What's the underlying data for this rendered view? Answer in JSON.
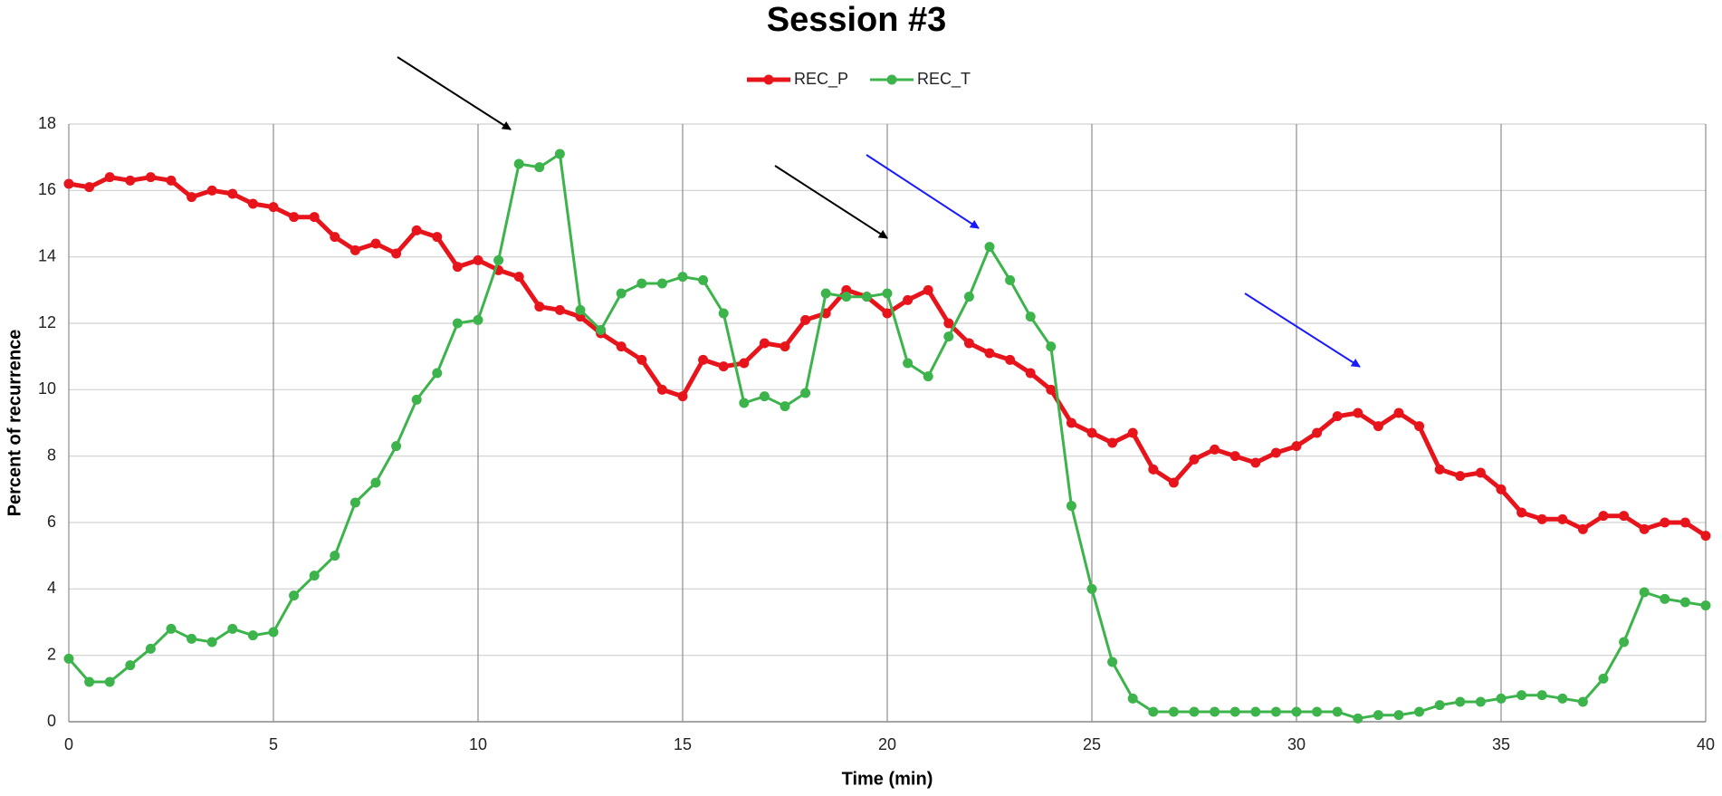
{
  "chart_data": {
    "type": "line",
    "title": "Session #3",
    "xlabel": "Time (min)",
    "ylabel": "Percent of recurrence",
    "x": [
      0,
      0.5,
      1,
      1.5,
      2,
      2.5,
      3,
      3.5,
      4,
      4.5,
      5,
      5.5,
      6,
      6.5,
      7,
      7.5,
      8,
      8.5,
      9,
      9.5,
      10,
      10.5,
      11,
      11.5,
      12,
      12.5,
      13,
      13.5,
      14,
      14.5,
      15,
      15.5,
      16,
      16.5,
      17,
      17.5,
      18,
      18.5,
      19,
      19.5,
      20,
      20.5,
      21,
      21.5,
      22,
      22.5,
      23,
      23.5,
      24,
      24.5,
      25,
      25.5,
      26,
      26.5,
      27,
      27.5,
      28,
      28.5,
      29,
      29.5,
      30,
      30.5,
      31,
      31.5,
      32,
      32.5,
      33,
      33.5,
      34,
      34.5,
      35,
      35.5,
      36,
      36.5,
      37,
      37.5,
      38,
      38.5,
      39,
      39.5,
      40
    ],
    "series": [
      {
        "name": "REC_P",
        "color": "#e8141c",
        "values": [
          16.2,
          16.1,
          16.4,
          16.3,
          16.4,
          16.3,
          15.8,
          16.0,
          15.9,
          15.6,
          15.5,
          15.2,
          15.2,
          14.6,
          14.2,
          14.4,
          14.1,
          14.8,
          14.6,
          13.7,
          13.9,
          13.6,
          13.4,
          12.5,
          12.4,
          12.2,
          11.7,
          11.3,
          10.9,
          10.0,
          9.8,
          10.9,
          10.7,
          10.8,
          11.4,
          11.3,
          12.1,
          12.3,
          13.0,
          12.8,
          12.3,
          12.7,
          13.0,
          12.0,
          11.4,
          11.1,
          10.9,
          10.5,
          10.0,
          9.0,
          8.7,
          8.4,
          8.7,
          7.6,
          7.2,
          7.9,
          8.2,
          8.0,
          7.8,
          8.1,
          8.3,
          8.7,
          9.2,
          9.3,
          8.9,
          9.3,
          8.9,
          7.6,
          7.4,
          7.5,
          7.0,
          6.3,
          6.1,
          6.1,
          5.8,
          6.2,
          6.2,
          5.8,
          6.0,
          6.0,
          5.6
        ]
      },
      {
        "name": "REC_T",
        "color": "#3cb44b",
        "values": [
          1.9,
          1.2,
          1.2,
          1.7,
          2.2,
          2.8,
          2.5,
          2.4,
          2.8,
          2.6,
          2.7,
          3.8,
          4.4,
          5.0,
          6.6,
          7.2,
          8.3,
          9.7,
          10.5,
          12.0,
          12.1,
          13.9,
          16.8,
          16.7,
          17.1,
          12.4,
          11.8,
          12.9,
          13.2,
          13.2,
          13.4,
          13.3,
          12.3,
          9.6,
          9.8,
          9.5,
          9.9,
          12.9,
          12.8,
          12.8,
          12.9,
          10.8,
          10.4,
          11.6,
          12.8,
          14.3,
          13.3,
          12.2,
          11.3,
          6.5,
          4.0,
          1.8,
          0.7,
          0.3,
          0.3,
          0.3,
          0.3,
          0.3,
          0.3,
          0.3,
          0.3,
          0.3,
          0.3,
          0.1,
          0.2,
          0.2,
          0.3,
          0.5,
          0.6,
          0.6,
          0.7,
          0.8,
          0.8,
          0.7,
          0.6,
          1.3,
          2.4,
          3.9,
          3.7,
          3.6,
          3.5
        ]
      }
    ],
    "xlim": [
      0,
      40
    ],
    "xticks": [
      0,
      5,
      10,
      15,
      20,
      25,
      30,
      35,
      40
    ],
    "ylim": [
      0,
      18
    ],
    "yticks": [
      0,
      2,
      4,
      6,
      8,
      10,
      12,
      14,
      16,
      18
    ],
    "grid": true,
    "legend": "top"
  }
}
